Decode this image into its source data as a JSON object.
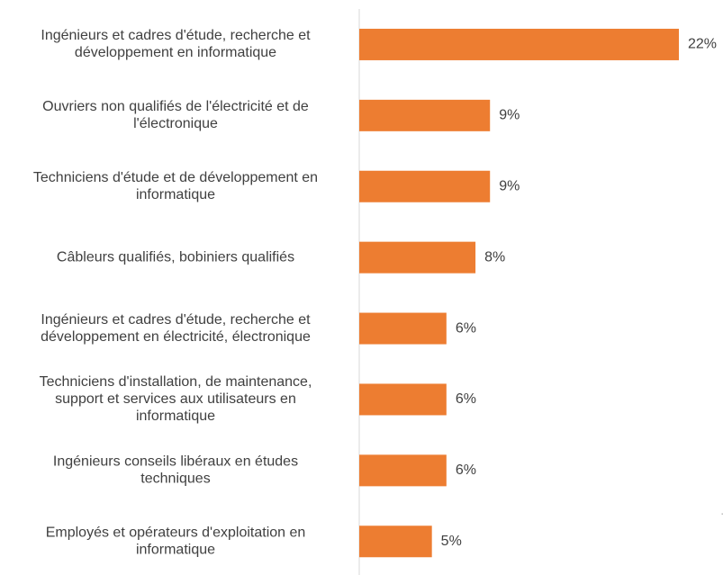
{
  "chart_data": {
    "type": "bar",
    "orientation": "horizontal",
    "categories": [
      [
        "Ingénieurs et cadres d'étude, recherche et",
        "développement en informatique"
      ],
      [
        "Ouvriers non qualifiés de l'électricité et de",
        "l'électronique"
      ],
      [
        "Techniciens d'étude et de développement en",
        "informatique"
      ],
      [
        "Câbleurs qualifiés, bobiniers qualifiés"
      ],
      [
        "Ingénieurs et cadres d'étude, recherche et",
        "développement en électricité, électronique"
      ],
      [
        "Techniciens d'installation, de maintenance,",
        "support et services aux utilisateurs en",
        "informatique"
      ],
      [
        "Ingénieurs conseils libéraux en études",
        "techniques"
      ],
      [
        "Employés et opérateurs d'exploitation en",
        "informatique"
      ]
    ],
    "values": [
      22,
      9,
      9,
      8,
      6,
      6,
      6,
      5
    ],
    "value_labels": [
      "22%",
      "9%",
      "9%",
      "8%",
      "6%",
      "6%",
      "6%",
      "5%"
    ],
    "unit": "%",
    "bar_color": "#ED7D31",
    "grid": false,
    "legend": "none"
  }
}
